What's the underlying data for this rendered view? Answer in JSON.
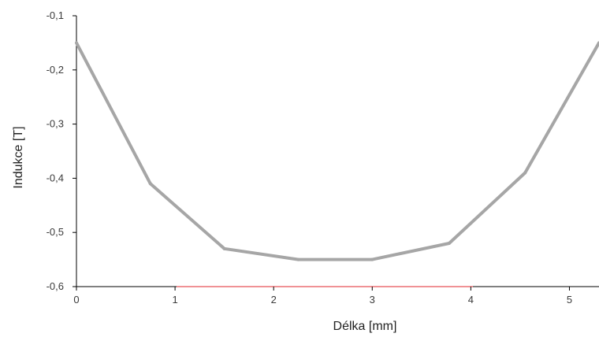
{
  "chart_data": {
    "type": "line",
    "title": "",
    "xlabel": "Délka [mm]",
    "ylabel": "Indukce [T]",
    "x": [
      0,
      0.75,
      1.5,
      2.25,
      3.0,
      3.78,
      4.55,
      5.3
    ],
    "series": [
      {
        "values": [
          -0.15,
          -0.41,
          -0.53,
          -0.55,
          -0.55,
          -0.52,
          -0.39,
          -0.15
        ],
        "color": "#a6a6a6"
      }
    ],
    "xlim": [
      0,
      5.3
    ],
    "ylim": [
      -0.6,
      -0.1
    ],
    "x_ticks": [
      {
        "value": 0,
        "label": "0"
      },
      {
        "value": 1,
        "label": "1"
      },
      {
        "value": 2,
        "label": "2"
      },
      {
        "value": 3,
        "label": "3"
      },
      {
        "value": 4,
        "label": "4"
      },
      {
        "value": 5,
        "label": "5"
      }
    ],
    "y_ticks": [
      {
        "value": -0.1,
        "label": "-0,1"
      },
      {
        "value": -0.2,
        "label": "-0,2"
      },
      {
        "value": -0.3,
        "label": "-0,3"
      },
      {
        "value": -0.4,
        "label": "-0,4"
      },
      {
        "value": -0.5,
        "label": "-0,5"
      },
      {
        "value": -0.6,
        "label": "-0,6"
      }
    ],
    "grid": false,
    "legend": "none",
    "colors": {
      "axis": "#000000",
      "baseline_highlight": "#e0262b",
      "series": "#a6a6a6"
    }
  }
}
